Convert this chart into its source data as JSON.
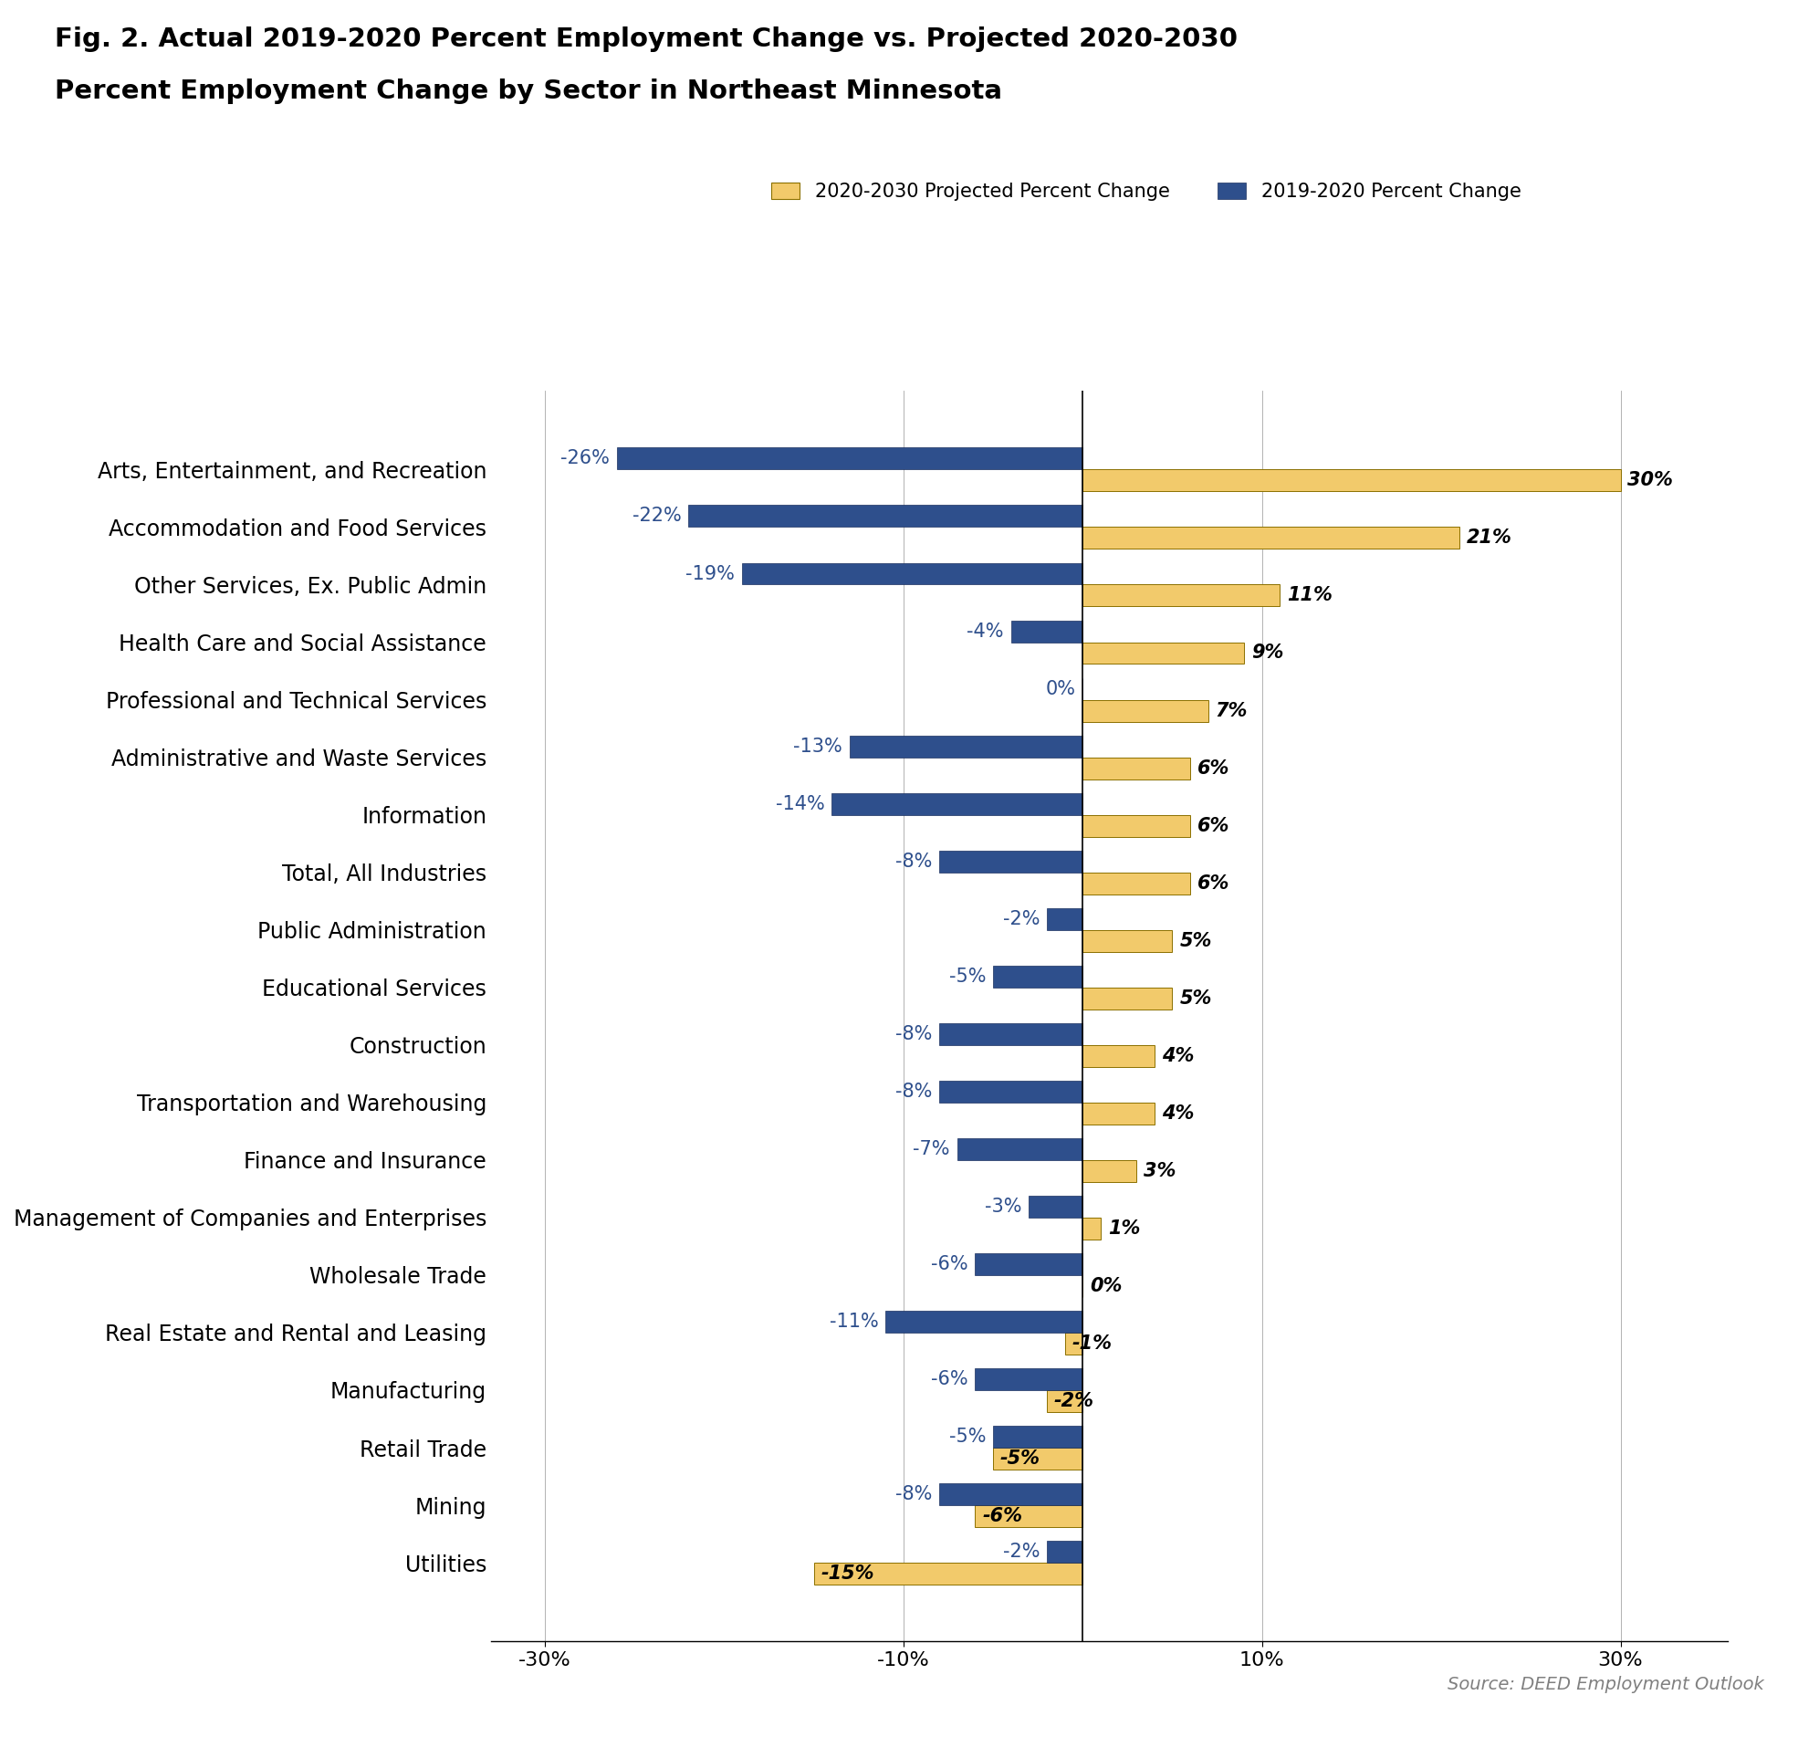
{
  "title_line1": "Fig. 2. Actual 2019-2020 Percent Employment Change vs. Projected 2020-2030",
  "title_line2": "Percent Employment Change by Sector in Northeast Minnesota",
  "source": "Source: DEED Employment Outlook",
  "categories": [
    "Arts, Entertainment, and Recreation",
    "Accommodation and Food Services",
    "Other Services, Ex. Public Admin",
    "Health Care and Social Assistance",
    "Professional and Technical Services",
    "Administrative and Waste Services",
    "Information",
    "Total, All Industries",
    "Public Administration",
    "Educational Services",
    "Construction",
    "Transportation and Warehousing",
    "Finance and Insurance",
    "Management of Companies and Enterprises",
    "Wholesale Trade",
    "Real Estate and Rental and Leasing",
    "Manufacturing",
    "Retail Trade",
    "Mining",
    "Utilities"
  ],
  "actual_2019_2020": [
    -26,
    -22,
    -19,
    -4,
    0,
    -13,
    -14,
    -8,
    -2,
    -5,
    -8,
    -8,
    -7,
    -3,
    -6,
    -11,
    -6,
    -5,
    -8,
    -2
  ],
  "projected_2020_2030": [
    30,
    21,
    11,
    9,
    7,
    6,
    6,
    6,
    5,
    5,
    4,
    4,
    3,
    1,
    0,
    -1,
    -2,
    -5,
    -6,
    -15
  ],
  "color_projected": "#F2CA6B",
  "color_actual": "#2E4F8C",
  "legend_projected": "2020-2030 Projected Percent Change",
  "legend_actual": "2019-2020 Percent Change",
  "xlim": [
    -33,
    36
  ],
  "xtick_values": [
    -30,
    -10,
    10,
    30
  ],
  "xtick_labels": [
    "-30%",
    "-10%",
    "10%",
    "30%"
  ],
  "bar_height": 0.38,
  "title_fontsize": 21,
  "axis_fontsize": 17,
  "label_fontsize": 15,
  "tick_fontsize": 16
}
